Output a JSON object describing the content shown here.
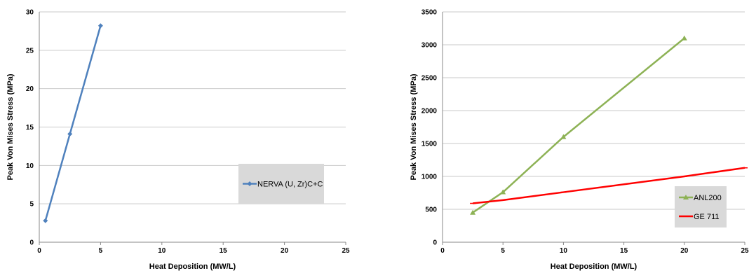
{
  "chart_data": [
    {
      "type": "line",
      "title": "",
      "xlabel": "Heat Deposition (MW/L)",
      "ylabel": "Peak Von Mises Stress (MPa)",
      "xlim": [
        0,
        25
      ],
      "ylim": [
        0,
        30
      ],
      "x_ticks": [
        0,
        5,
        10,
        15,
        20,
        25
      ],
      "y_ticks": [
        0,
        5,
        10,
        15,
        20,
        25,
        30
      ],
      "grid": "horizontal",
      "legend_position": "right",
      "series": [
        {
          "name": "NERVA (U, Zr)C+C",
          "color": "#4f81bd",
          "marker": "diamond",
          "x": [
            0.5,
            2.5,
            5
          ],
          "y": [
            2.8,
            14.1,
            28.2
          ]
        }
      ]
    },
    {
      "type": "line",
      "title": "",
      "xlabel": "Heat Deposition (MW/L)",
      "ylabel": "Peak Von Mises Stress (MPa)",
      "xlim": [
        0,
        25
      ],
      "ylim": [
        0,
        3500
      ],
      "x_ticks": [
        0,
        5,
        10,
        15,
        20,
        25
      ],
      "y_ticks": [
        0,
        500,
        1000,
        1500,
        2000,
        2500,
        3000,
        3500
      ],
      "grid": "horizontal",
      "legend_position": "bottom-right",
      "series": [
        {
          "name": "ANL200",
          "color": "#8db255",
          "marker": "triangle",
          "x": [
            2.5,
            5,
            10,
            20
          ],
          "y": [
            450,
            760,
            1600,
            3100
          ]
        },
        {
          "name": "GE 711",
          "color": "#ff0000",
          "marker": "dash",
          "x": [
            2.5,
            5,
            10,
            20,
            25
          ],
          "y": [
            590,
            640,
            760,
            1000,
            1130
          ]
        }
      ]
    }
  ]
}
